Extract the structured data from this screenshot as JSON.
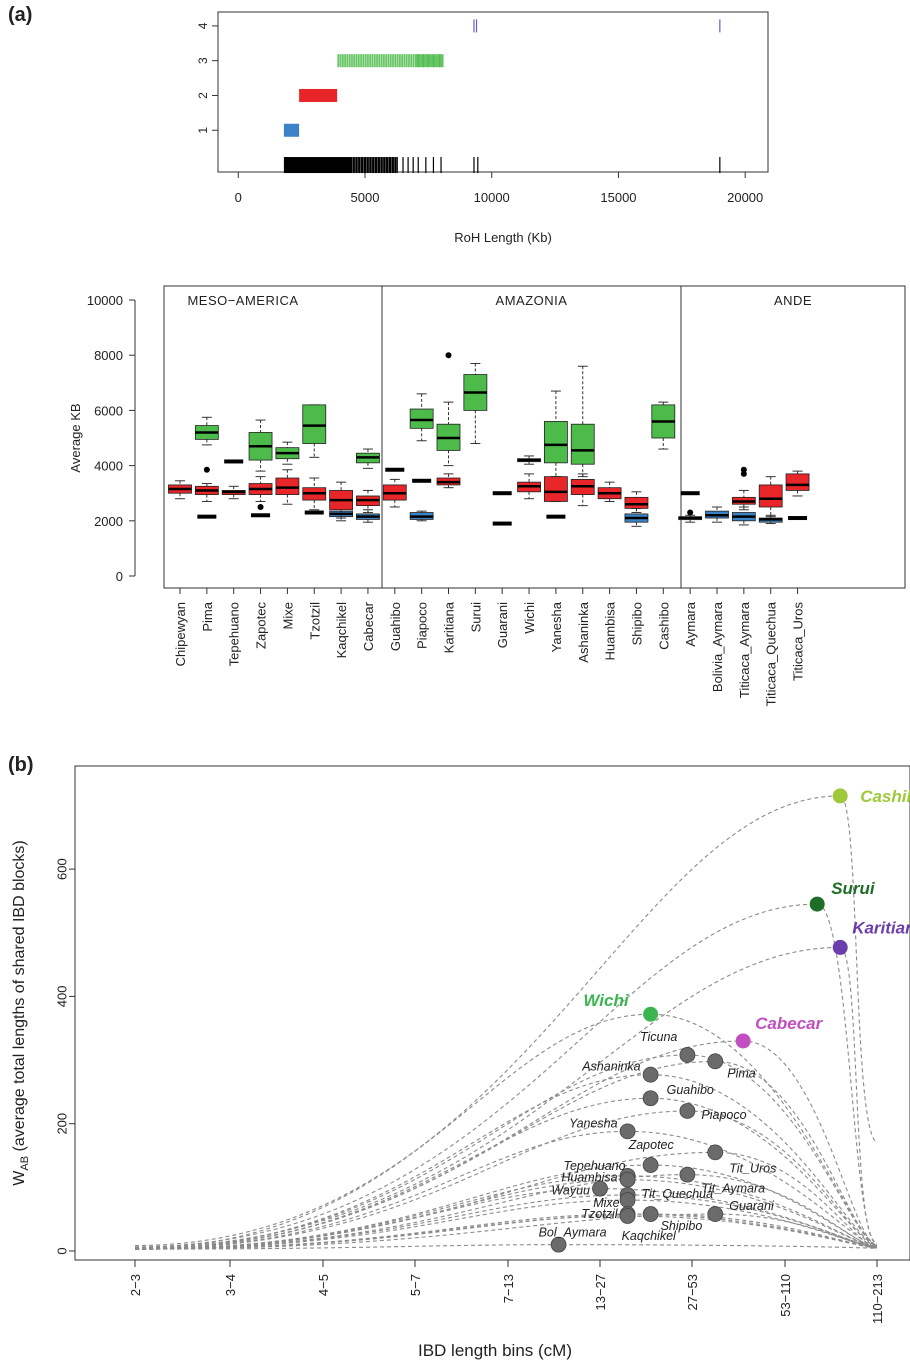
{
  "panels": {
    "a_label": "(a)",
    "b_label": "(b)"
  },
  "colors": {
    "blue": "#3b83c6",
    "red": "#e8262a",
    "green": "#4dbb4a",
    "black": "#000000",
    "purple": "#6b5ad3",
    "gray_point": "#6b6b6b",
    "cashibo": "#9dc93a",
    "surui": "#1e6e27",
    "karitiana": "#6a3dac",
    "wichi": "#3cb551",
    "cabecar": "#c14fc1"
  },
  "chart_data": [
    {
      "id": "roh-strip",
      "type": "scatter",
      "title": "",
      "xlabel": "RoH Length (Kb)",
      "ylabel": "",
      "xlim": [
        -800,
        20900
      ],
      "ylim": [
        -0.2,
        4.4
      ],
      "x_ticks": [
        0,
        5000,
        10000,
        15000,
        20000
      ],
      "x_tick_labels": [
        "0",
        "5000",
        "10000",
        "15000",
        "20000"
      ],
      "y_ticks": [
        1,
        2,
        3,
        4
      ],
      "y_tick_labels": [
        "1",
        "2",
        "3",
        "4"
      ],
      "rows": [
        {
          "class": 1,
          "color": "blue",
          "range": [
            1800,
            2400
          ]
        },
        {
          "class": 2,
          "color": "red",
          "range": [
            2400,
            3900
          ]
        },
        {
          "class": 3,
          "color": "green",
          "range": [
            3900,
            8100
          ],
          "ticks": [
            7100,
            7300,
            7500,
            7700,
            7950
          ]
        },
        {
          "class": 4,
          "color": "purple",
          "ticks": [
            9300,
            9400,
            19000
          ]
        },
        {
          "class": 0,
          "color": "black",
          "range": [
            1800,
            6300
          ],
          "ticks": [
            6500,
            6700,
            6900,
            7100,
            7400,
            7700,
            8000,
            9300,
            9450,
            19000
          ]
        }
      ]
    },
    {
      "id": "roh-boxplot",
      "type": "box",
      "title": "",
      "ylabel": "Average KB",
      "ylim": [
        0,
        10000
      ],
      "y_ticks": [
        0,
        2000,
        4000,
        6000,
        8000,
        10000
      ],
      "regions": [
        {
          "name": "MESO−AMERICA",
          "from": 0,
          "to": 8
        },
        {
          "name": "AMAZONIA",
          "from": 8,
          "to": 19
        },
        {
          "name": "ANDE",
          "from": 19,
          "to": 24
        }
      ],
      "categories": [
        "Chipewyan",
        "Pima",
        "Tepehuano",
        "Zapotec",
        "Mixe",
        "Tzotzil",
        "Kaqchikel",
        "Cabecar",
        "Guahibo",
        "Piapoco",
        "Karitiana",
        "Surui",
        "Guarani",
        "Wichi",
        "Yanesha",
        "Ashaninka",
        "Huambisa",
        "Shipibo",
        "Cashibo",
        "Aymara",
        "Bolivia_Aymara",
        "Titicaca_Aymara",
        "Titicaca_Quechua",
        "Titicaca_Uros"
      ],
      "boxes": [
        {
          "cat": 0,
          "color": "red",
          "q": [
            2800,
            3000,
            3150,
            3300,
            3450
          ]
        },
        {
          "cat": 1,
          "color": "black",
          "q": [
            2150,
            2150,
            2150,
            2150,
            2150
          ]
        },
        {
          "cat": 1,
          "color": "red",
          "q": [
            2700,
            2950,
            3100,
            3250,
            3350
          ],
          "out": [
            3850
          ]
        },
        {
          "cat": 1,
          "color": "green",
          "q": [
            4750,
            4950,
            5200,
            5450,
            5750
          ]
        },
        {
          "cat": 2,
          "color": "red",
          "q": [
            2800,
            2950,
            3050,
            3100,
            3250
          ]
        },
        {
          "cat": 2,
          "color": "black",
          "q": [
            4150,
            4150,
            4150,
            4150,
            4150
          ]
        },
        {
          "cat": 3,
          "color": "black",
          "q": [
            2200,
            2200,
            2200,
            2200,
            2200
          ],
          "out": [
            2500
          ]
        },
        {
          "cat": 3,
          "color": "red",
          "q": [
            2700,
            2950,
            3150,
            3350,
            3600
          ]
        },
        {
          "cat": 3,
          "color": "green",
          "q": [
            3800,
            4200,
            4700,
            5200,
            5650
          ]
        },
        {
          "cat": 4,
          "color": "red",
          "q": [
            2600,
            2950,
            3200,
            3550,
            3850
          ]
        },
        {
          "cat": 4,
          "color": "green",
          "q": [
            4050,
            4250,
            4450,
            4650,
            4850
          ]
        },
        {
          "cat": 5,
          "color": "black",
          "q": [
            2300,
            2300,
            2300,
            2300,
            2300
          ]
        },
        {
          "cat": 5,
          "color": "red",
          "q": [
            2400,
            2750,
            3000,
            3200,
            3550
          ]
        },
        {
          "cat": 5,
          "color": "green",
          "q": [
            4300,
            4800,
            5450,
            6200,
            6200
          ]
        },
        {
          "cat": 6,
          "color": "blue",
          "q": [
            2000,
            2150,
            2250,
            2350,
            2500
          ]
        },
        {
          "cat": 6,
          "color": "red",
          "q": [
            2100,
            2400,
            2750,
            3100,
            3400
          ]
        },
        {
          "cat": 7,
          "color": "blue",
          "q": [
            1950,
            2050,
            2150,
            2250,
            2400
          ]
        },
        {
          "cat": 7,
          "color": "red",
          "q": [
            2300,
            2550,
            2750,
            2900,
            3100
          ]
        },
        {
          "cat": 7,
          "color": "green",
          "q": [
            3900,
            4100,
            4300,
            4450,
            4600
          ]
        },
        {
          "cat": 8,
          "color": "black",
          "q": [
            3850,
            3850,
            3850,
            3850,
            3850
          ]
        },
        {
          "cat": 8,
          "color": "red",
          "q": [
            2500,
            2750,
            3000,
            3300,
            3500
          ]
        },
        {
          "cat": 9,
          "color": "blue",
          "q": [
            2000,
            2050,
            2150,
            2300,
            2350
          ]
        },
        {
          "cat": 9,
          "color": "black",
          "q": [
            3450,
            3450,
            3450,
            3450,
            3450
          ]
        },
        {
          "cat": 9,
          "color": "green",
          "q": [
            4900,
            5350,
            5650,
            6050,
            6600
          ]
        },
        {
          "cat": 10,
          "color": "red",
          "q": [
            3200,
            3300,
            3400,
            3550,
            3700
          ]
        },
        {
          "cat": 10,
          "color": "green",
          "q": [
            4000,
            4550,
            5000,
            5500,
            6300
          ],
          "out": [
            8000
          ]
        },
        {
          "cat": 11,
          "color": "green",
          "q": [
            4800,
            6000,
            6650,
            7300,
            7700
          ]
        },
        {
          "cat": 12,
          "color": "black",
          "q": [
            3000,
            3000,
            3000,
            3000,
            3000
          ]
        },
        {
          "cat": 12,
          "color": "black",
          "q": [
            1900,
            1900,
            1900,
            1900,
            1900
          ]
        },
        {
          "cat": 13,
          "color": "red",
          "q": [
            2800,
            3050,
            3250,
            3400,
            3700
          ]
        },
        {
          "cat": 13,
          "color": "green",
          "q": [
            4050,
            4150,
            4200,
            4250,
            4350
          ]
        },
        {
          "cat": 14,
          "color": "black",
          "q": [
            2150,
            2150,
            2150,
            2150,
            2150
          ]
        },
        {
          "cat": 14,
          "color": "red",
          "q": [
            2700,
            2700,
            3050,
            3600,
            3600
          ]
        },
        {
          "cat": 14,
          "color": "green",
          "q": [
            3600,
            4100,
            4750,
            5600,
            6700
          ]
        },
        {
          "cat": 15,
          "color": "red",
          "q": [
            2550,
            2950,
            3250,
            3500,
            3700
          ]
        },
        {
          "cat": 15,
          "color": "green",
          "q": [
            3600,
            4050,
            4550,
            5500,
            7600
          ]
        },
        {
          "cat": 16,
          "color": "red",
          "q": [
            2700,
            2800,
            3000,
            3200,
            3400
          ]
        },
        {
          "cat": 17,
          "color": "blue",
          "q": [
            1800,
            1950,
            2100,
            2250,
            2450
          ]
        },
        {
          "cat": 17,
          "color": "red",
          "q": [
            2300,
            2450,
            2600,
            2850,
            3050
          ]
        },
        {
          "cat": 18,
          "color": "green",
          "q": [
            4600,
            5000,
            5600,
            6200,
            6300
          ]
        },
        {
          "cat": 19,
          "color": "blue",
          "q": [
            1950,
            2050,
            2100,
            2150,
            2200
          ],
          "out": [
            2300
          ]
        },
        {
          "cat": 19,
          "color": "black",
          "q": [
            3000,
            3000,
            3000,
            3000,
            3000
          ]
        },
        {
          "cat": 20,
          "color": "blue",
          "q": [
            1950,
            2100,
            2200,
            2350,
            2500
          ]
        },
        {
          "cat": 21,
          "color": "blue",
          "q": [
            1850,
            2000,
            2150,
            2300,
            2500
          ]
        },
        {
          "cat": 21,
          "color": "red",
          "q": [
            2400,
            2600,
            2700,
            2850,
            3100
          ],
          "out": [
            3700,
            3850
          ]
        },
        {
          "cat": 22,
          "color": "blue",
          "q": [
            1900,
            1950,
            2050,
            2100,
            2200
          ]
        },
        {
          "cat": 22,
          "color": "red",
          "q": [
            2150,
            2500,
            2800,
            3300,
            3600
          ]
        },
        {
          "cat": 23,
          "color": "black",
          "q": [
            2100,
            2100,
            2100,
            2100,
            2100
          ]
        },
        {
          "cat": 23,
          "color": "red",
          "q": [
            2900,
            3100,
            3300,
            3700,
            3800
          ]
        }
      ]
    },
    {
      "id": "ibd-curves",
      "type": "line",
      "title": "",
      "xlabel": "IBD length bins (cM)",
      "ylabel": "W",
      "ylabel_sub": "AB",
      "ylabel_rest": " (average total lengths of shared IBD blocks)",
      "categories": [
        "2−3",
        "3−4",
        "4−5",
        "5−7",
        "7−13",
        "13−27",
        "27−53",
        "53−110",
        "110−213"
      ],
      "ylim": [
        0,
        740
      ],
      "y_ticks": [
        0,
        200,
        400,
        600
      ],
      "points": [
        {
          "label": "Cashibo",
          "x": 7.6,
          "y": 715,
          "color": "cashibo",
          "highlight": true
        },
        {
          "label": "Surui",
          "x": 7.35,
          "y": 545,
          "color": "surui",
          "highlight": true
        },
        {
          "label": "Karitiana",
          "x": 7.6,
          "y": 477,
          "color": "karitiana",
          "highlight": true
        },
        {
          "label": "Wichi",
          "x": 5.55,
          "y": 372,
          "color": "wichi",
          "highlight": true
        },
        {
          "label": "Cabecar",
          "x": 6.55,
          "y": 330,
          "color": "cabecar",
          "highlight": true
        },
        {
          "label": "Ticuna",
          "x": 5.95,
          "y": 308,
          "color": "gray_point"
        },
        {
          "label": "Pima",
          "x": 6.25,
          "y": 298,
          "color": "gray_point"
        },
        {
          "label": "Ashaninka",
          "x": 5.55,
          "y": 277,
          "color": "gray_point"
        },
        {
          "label": "Guahibo",
          "x": 5.55,
          "y": 240,
          "color": "gray_point"
        },
        {
          "label": "Piapoco",
          "x": 5.95,
          "y": 220,
          "color": "gray_point"
        },
        {
          "label": "Yanesha",
          "x": 5.3,
          "y": 188,
          "color": "gray_point"
        },
        {
          "label": "Zapotec",
          "x": 5.55,
          "y": 135,
          "color": "gray_point"
        },
        {
          "label": "Tit_Uros",
          "x": 6.25,
          "y": 155,
          "color": "gray_point"
        },
        {
          "label": "Tepehuano",
          "x": 5.3,
          "y": 118,
          "color": "gray_point"
        },
        {
          "label": "Huambisa",
          "x": 5.3,
          "y": 112,
          "color": "gray_point"
        },
        {
          "label": "Tit_Aymara",
          "x": 5.95,
          "y": 120,
          "color": "gray_point"
        },
        {
          "label": "Wayuu",
          "x": 5.0,
          "y": 98,
          "color": "gray_point"
        },
        {
          "label": "Mixe",
          "x": 5.3,
          "y": 88,
          "color": "gray_point"
        },
        {
          "label": "Tit_Quechua",
          "x": 5.3,
          "y": 80,
          "color": "gray_point"
        },
        {
          "label": "Guarani",
          "x": 6.25,
          "y": 58,
          "color": "gray_point"
        },
        {
          "label": "Tzotzil",
          "x": 5.3,
          "y": 58,
          "color": "gray_point"
        },
        {
          "label": "Shipibo",
          "x": 5.55,
          "y": 58,
          "color": "gray_point"
        },
        {
          "label": "Kaqchikel",
          "x": 5.3,
          "y": 55,
          "color": "gray_point"
        },
        {
          "label": "Bol_Aymara",
          "x": 4.55,
          "y": 10,
          "color": "gray_point"
        }
      ]
    }
  ]
}
